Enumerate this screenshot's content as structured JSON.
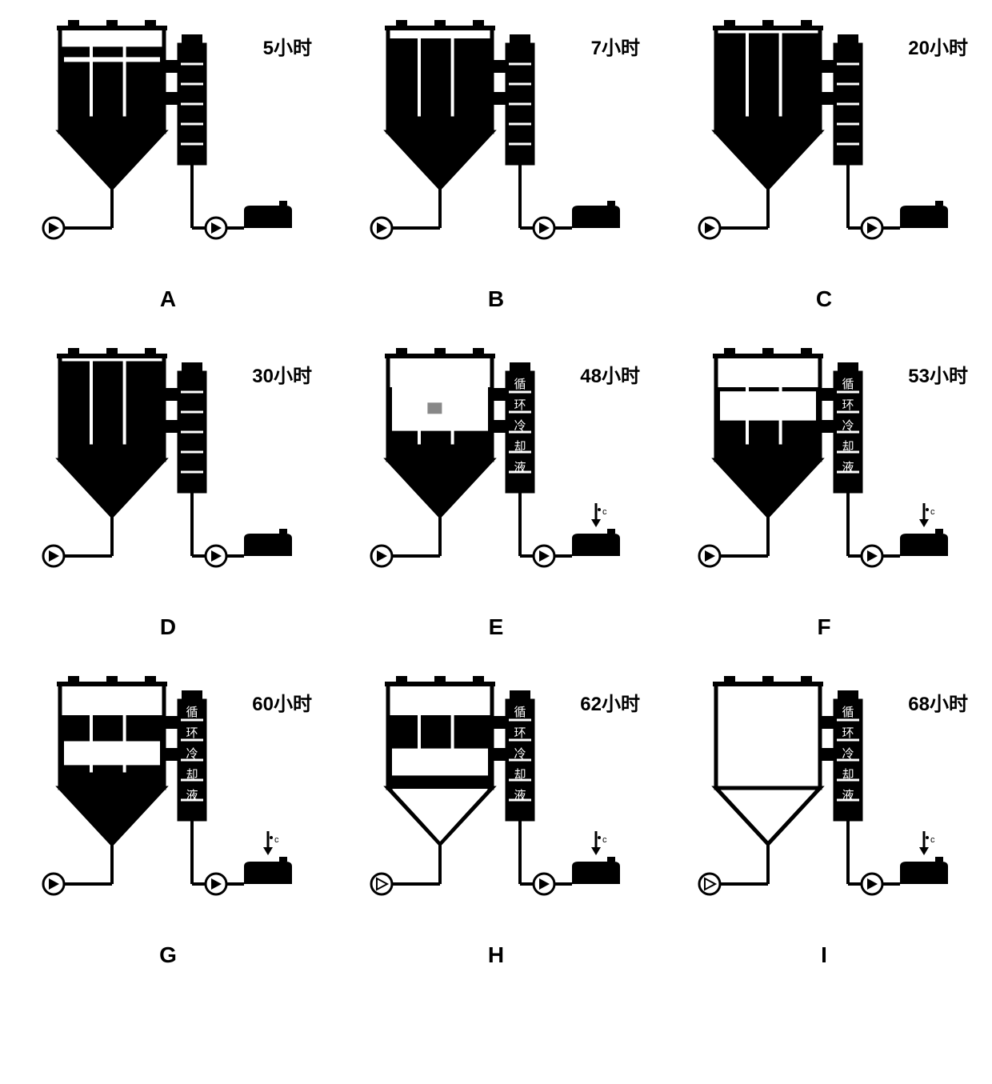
{
  "grid": {
    "columns": 3,
    "rows": 3,
    "background": "#ffffff",
    "stroke": "#000000",
    "fill_black": "#000000",
    "fill_white": "#ffffff",
    "time_suffix": "小时",
    "label_fontsize": 24,
    "caption_fontsize": 28
  },
  "panels": [
    {
      "id": "A",
      "time": "5小时",
      "tank_fill_top": 0.18,
      "cone_fill": 1.0,
      "line_y": 0.3,
      "show_gauge_text": false,
      "show_arrow": false,
      "show_pump_left": true,
      "show_pump_right": true,
      "tank_empty": false
    },
    {
      "id": "B",
      "time": "7小时",
      "tank_fill_top": 0.1,
      "cone_fill": 1.0,
      "line_y": null,
      "show_gauge_text": false,
      "show_arrow": false,
      "show_pump_left": true,
      "show_pump_right": true,
      "tank_empty": false
    },
    {
      "id": "C",
      "time": "20小时",
      "tank_fill_top": 0.05,
      "cone_fill": 1.0,
      "line_y": null,
      "show_gauge_text": false,
      "show_arrow": false,
      "show_pump_left": true,
      "show_pump_right": true,
      "tank_empty": false
    },
    {
      "id": "D",
      "time": "30小时",
      "tank_fill_top": 0.05,
      "cone_fill": 1.0,
      "line_y": null,
      "show_gauge_text": false,
      "show_arrow": false,
      "show_pump_left": true,
      "show_pump_right": true,
      "tank_empty": false
    },
    {
      "id": "E",
      "time": "48小时",
      "tank_fill_top": 0.3,
      "cone_fill": 1.0,
      "line_y": 0.62,
      "show_gauge_text": true,
      "show_arrow": true,
      "show_pump_left": true,
      "show_pump_right": true,
      "tank_empty": false,
      "patch": true
    },
    {
      "id": "F",
      "time": "53小时",
      "tank_fill_top": 0.3,
      "cone_fill": 1.0,
      "line_y": 0.46,
      "show_gauge_text": true,
      "show_arrow": true,
      "show_pump_left": true,
      "show_pump_right": true,
      "tank_empty": false
    },
    {
      "id": "G",
      "time": "60小时",
      "tank_fill_top": 0.3,
      "cone_fill": 1.0,
      "line_y": 0.7,
      "show_gauge_text": true,
      "show_arrow": true,
      "show_pump_left": true,
      "show_pump_right": true,
      "tank_empty": false
    },
    {
      "id": "H",
      "time": "62小时",
      "tank_fill_top": 0.3,
      "cone_fill": 0.0,
      "line_y": 0.78,
      "show_gauge_text": true,
      "show_arrow": true,
      "show_pump_left": false,
      "show_pump_right": true,
      "tank_empty": false
    },
    {
      "id": "I",
      "time": "68小时",
      "tank_fill_top": 0.3,
      "cone_fill": 0.0,
      "line_y": null,
      "show_gauge_text": true,
      "show_arrow": true,
      "show_pump_left": false,
      "show_pump_right": true,
      "tank_empty": true
    }
  ]
}
